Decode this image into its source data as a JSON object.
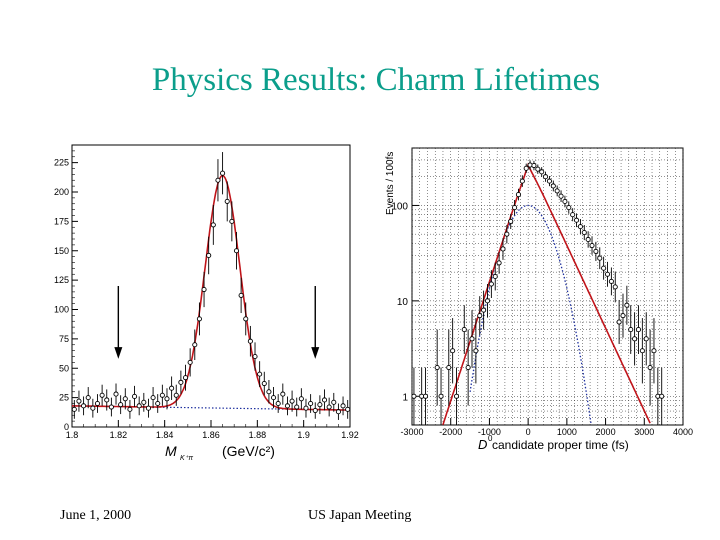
{
  "slide": {
    "title": "Physics Results: Charm Lifetimes",
    "footer_date": "June 1, 2000",
    "footer_event": "US Japan Meeting"
  },
  "colors": {
    "title": "#0b9e8b",
    "fit": "#c0141a",
    "background_fit": "#1d2f9e",
    "points": "#000000"
  },
  "chart_data": [
    {
      "type": "scatter",
      "xlabel_main": "M",
      "xlabel_sub": "K⁺π",
      "xlabel_unit": "(GeV/c²)",
      "ylabel": "",
      "xlim": [
        1.8,
        1.92
      ],
      "ylim": [
        0,
        240
      ],
      "xticks": [
        1.8,
        1.82,
        1.84,
        1.86,
        1.88,
        1.9,
        1.92
      ],
      "xtick_labels": [
        "1.8",
        "1.82",
        "1.84",
        "1.86",
        "1.88",
        "1.9",
        "1.92"
      ],
      "yticks": [
        0,
        25,
        50,
        75,
        100,
        125,
        150,
        175,
        200,
        225
      ],
      "ytick_labels": [
        "0",
        "25",
        "50",
        "75",
        "100",
        "125",
        "150",
        "175",
        "200",
        "225"
      ],
      "signal_window_arrows_x": [
        1.82,
        1.905
      ],
      "fit": {
        "peak_mass": 1.865,
        "sigma": 0.0075,
        "peak_height": 198,
        "background_level": 18
      },
      "points": [
        [
          1.801,
          15,
          8
        ],
        [
          1.803,
          22,
          9
        ],
        [
          1.805,
          18,
          8
        ],
        [
          1.807,
          25,
          9
        ],
        [
          1.809,
          16,
          8
        ],
        [
          1.811,
          20,
          8
        ],
        [
          1.813,
          27,
          9
        ],
        [
          1.815,
          23,
          9
        ],
        [
          1.817,
          17,
          8
        ],
        [
          1.819,
          28,
          9
        ],
        [
          1.821,
          19,
          8
        ],
        [
          1.823,
          24,
          9
        ],
        [
          1.825,
          15,
          8
        ],
        [
          1.827,
          26,
          9
        ],
        [
          1.829,
          18,
          8
        ],
        [
          1.831,
          21,
          8
        ],
        [
          1.833,
          16,
          8
        ],
        [
          1.835,
          25,
          9
        ],
        [
          1.837,
          20,
          8
        ],
        [
          1.839,
          27,
          9
        ],
        [
          1.841,
          24,
          9
        ],
        [
          1.843,
          33,
          10
        ],
        [
          1.845,
          27,
          9
        ],
        [
          1.847,
          38,
          10
        ],
        [
          1.849,
          42,
          11
        ],
        [
          1.851,
          55,
          12
        ],
        [
          1.853,
          70,
          13
        ],
        [
          1.855,
          92,
          14
        ],
        [
          1.857,
          117,
          15
        ],
        [
          1.859,
          146,
          16
        ],
        [
          1.861,
          172,
          17
        ],
        [
          1.863,
          210,
          18
        ],
        [
          1.865,
          216,
          18
        ],
        [
          1.867,
          192,
          17
        ],
        [
          1.869,
          175,
          17
        ],
        [
          1.871,
          150,
          16
        ],
        [
          1.873,
          112,
          15
        ],
        [
          1.875,
          92,
          14
        ],
        [
          1.877,
          73,
          13
        ],
        [
          1.879,
          60,
          12
        ],
        [
          1.881,
          45,
          11
        ],
        [
          1.883,
          37,
          10
        ],
        [
          1.885,
          30,
          10
        ],
        [
          1.887,
          25,
          9
        ],
        [
          1.889,
          20,
          8
        ],
        [
          1.891,
          28,
          9
        ],
        [
          1.893,
          18,
          8
        ],
        [
          1.895,
          22,
          9
        ],
        [
          1.897,
          17,
          8
        ],
        [
          1.899,
          24,
          9
        ],
        [
          1.901,
          16,
          8
        ],
        [
          1.903,
          20,
          8
        ],
        [
          1.905,
          14,
          7
        ],
        [
          1.907,
          19,
          8
        ],
        [
          1.909,
          23,
          9
        ],
        [
          1.911,
          17,
          8
        ],
        [
          1.913,
          21,
          8
        ],
        [
          1.915,
          13,
          7
        ],
        [
          1.917,
          18,
          8
        ],
        [
          1.919,
          15,
          8
        ]
      ]
    },
    {
      "type": "scatter",
      "xlabel_main": "D",
      "xlabel_sup": "0",
      "xlabel_rest": " candidate proper time (fs)",
      "ylabel": "Events / 100fs",
      "log_y": true,
      "xlim": [
        -3000,
        4000
      ],
      "ylim": [
        0.5,
        400
      ],
      "xticks": [
        -3000,
        -2000,
        -1000,
        0,
        1000,
        2000,
        3000,
        4000
      ],
      "xtick_labels": [
        "-3000",
        "-2000",
        "-1000",
        "0",
        "1000",
        "2000",
        "3000",
        "4000"
      ],
      "yticks": [
        1,
        10,
        100
      ],
      "ytick_labels": [
        "1",
        "10",
        "100"
      ],
      "grid": true,
      "fit": {
        "peak": 280,
        "left_slope_per_1000fs": 2.6,
        "right_slope_per_1000fs": 1.52
      },
      "resolution_curve": {
        "peak": 100,
        "width_fs": 500
      },
      "points": [
        [
          -2950,
          1.0,
          2
        ],
        [
          -2750,
          1.0,
          2
        ],
        [
          -2650,
          1.0,
          2
        ],
        [
          -2350,
          2.0,
          2.5
        ],
        [
          -2250,
          1.0,
          2
        ],
        [
          -2050,
          2.0,
          2.5
        ],
        [
          -1950,
          3.0,
          2.2
        ],
        [
          -1850,
          1.0,
          2
        ],
        [
          -1650,
          5.0,
          1.8
        ],
        [
          -1550,
          2.0,
          2.5
        ],
        [
          -1450,
          4.0,
          2
        ],
        [
          -1350,
          3.0,
          2.2
        ],
        [
          -1250,
          7.0,
          1.6
        ],
        [
          -1150,
          8.0,
          1.6
        ],
        [
          -1050,
          10.0,
          1.5
        ],
        [
          -950,
          15.0,
          1.4
        ],
        [
          -850,
          18.0,
          1.4
        ],
        [
          -750,
          25.0,
          1.3
        ],
        [
          -650,
          35.0,
          1.3
        ],
        [
          -550,
          50.0,
          1.25
        ],
        [
          -450,
          68.0,
          1.2
        ],
        [
          -350,
          95.0,
          1.2
        ],
        [
          -250,
          130.0,
          1.15
        ],
        [
          -150,
          180.0,
          1.15
        ],
        [
          -50,
          245.0,
          1.12
        ],
        [
          50,
          265.0,
          1.12
        ],
        [
          150,
          262.0,
          1.12
        ],
        [
          250,
          240.0,
          1.12
        ],
        [
          350,
          225.0,
          1.12
        ],
        [
          450,
          200.0,
          1.13
        ],
        [
          550,
          180.0,
          1.13
        ],
        [
          650,
          160.0,
          1.14
        ],
        [
          750,
          142.0,
          1.14
        ],
        [
          850,
          125.0,
          1.15
        ],
        [
          950,
          110.0,
          1.15
        ],
        [
          1050,
          95.0,
          1.16
        ],
        [
          1150,
          80.0,
          1.17
        ],
        [
          1250,
          70.0,
          1.18
        ],
        [
          1350,
          60.0,
          1.2
        ],
        [
          1450,
          52.0,
          1.2
        ],
        [
          1550,
          44.0,
          1.22
        ],
        [
          1650,
          38.0,
          1.25
        ],
        [
          1750,
          33.0,
          1.26
        ],
        [
          1850,
          28.0,
          1.3
        ],
        [
          1950,
          22.0,
          1.32
        ],
        [
          2050,
          19.0,
          1.35
        ],
        [
          2150,
          16.0,
          1.4
        ],
        [
          2250,
          14.0,
          1.45
        ],
        [
          2350,
          6.0,
          1.7
        ],
        [
          2450,
          7.0,
          1.7
        ],
        [
          2550,
          9.0,
          1.6
        ],
        [
          2650,
          5.0,
          1.8
        ],
        [
          2750,
          4.0,
          1.9
        ],
        [
          2850,
          5.0,
          1.8
        ],
        [
          2950,
          3.0,
          2.2
        ],
        [
          3050,
          4.0,
          1.9
        ],
        [
          3150,
          2.0,
          2.5
        ],
        [
          3250,
          3.0,
          2.2
        ],
        [
          3350,
          1.0,
          2
        ],
        [
          3450,
          1.0,
          2
        ]
      ]
    }
  ]
}
